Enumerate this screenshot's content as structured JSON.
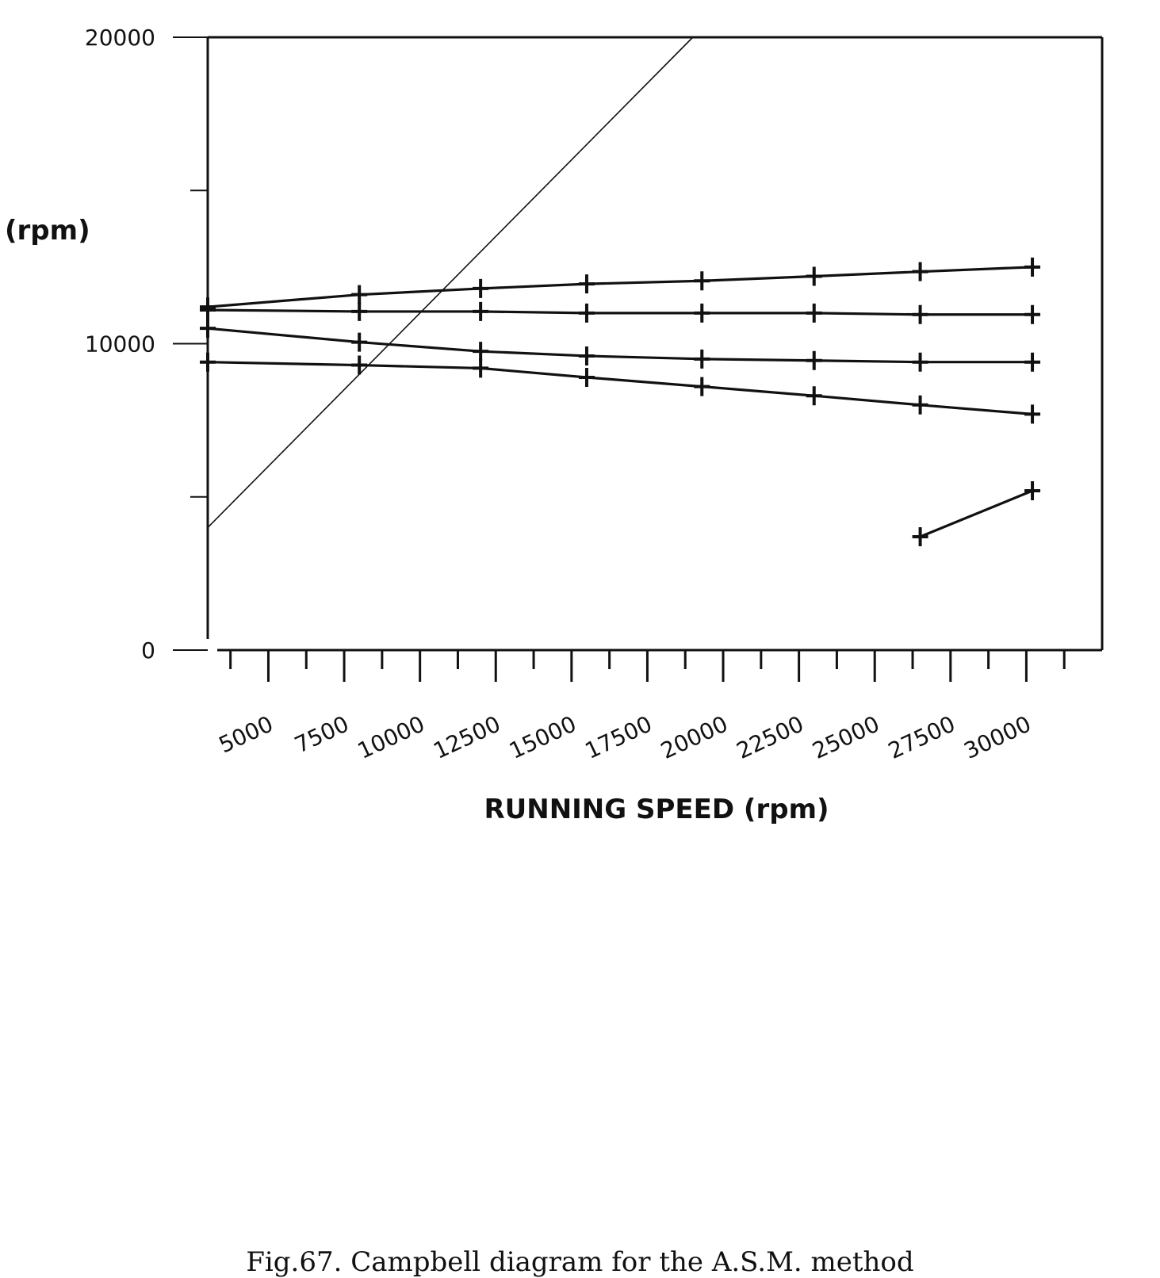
{
  "chart_data": {
    "type": "line",
    "xlabel": "RUNNING SPEED (rpm)",
    "ylabel": "(rpm)",
    "caption": "Fig.67. Campbell diagram for the A.S.M. method",
    "xlim": [
      3000,
      32500
    ],
    "ylim": [
      0,
      20000
    ],
    "x_ticks": [
      5000,
      7500,
      10000,
      12500,
      15000,
      17500,
      20000,
      22500,
      25000,
      27500,
      30000
    ],
    "x_minor_ticks": [
      3750,
      6250,
      8750,
      11250,
      13750,
      16250,
      18750,
      21250,
      23750,
      26250,
      28750,
      31250
    ],
    "y_tick_labels": [
      {
        "value": 0,
        "label": "0"
      },
      {
        "value": 10000,
        "label": "10000"
      },
      {
        "value": 20000,
        "label": "20000"
      }
    ],
    "y_minor_ticks": [
      5000,
      15000
    ],
    "reference_line": {
      "x": [
        3000,
        19000
      ],
      "y": [
        4000,
        20000
      ]
    },
    "series": [
      {
        "x": [
          3000,
          8000,
          12000,
          15500,
          19300,
          23000,
          26500,
          30200
        ],
        "y": [
          11200,
          11600,
          11800,
          11950,
          12050,
          12200,
          12350,
          12500
        ]
      },
      {
        "x": [
          3000,
          8000,
          12000,
          15500,
          19300,
          23000,
          26500,
          30200
        ],
        "y": [
          11100,
          11050,
          11050,
          11000,
          11000,
          11000,
          10950,
          10950
        ]
      },
      {
        "x": [
          3000,
          8000,
          12000,
          15500,
          19300,
          23000,
          26500,
          30200
        ],
        "y": [
          10500,
          10050,
          9750,
          9600,
          9500,
          9450,
          9400,
          9400
        ]
      },
      {
        "x": [
          3000,
          8000,
          12000,
          15500,
          19300,
          23000,
          26500,
          30200
        ],
        "y": [
          9400,
          9300,
          9200,
          8900,
          8600,
          8300,
          8000,
          7700
        ]
      },
      {
        "x": [
          26500,
          30200
        ],
        "y": [
          3700,
          5200
        ]
      }
    ]
  }
}
